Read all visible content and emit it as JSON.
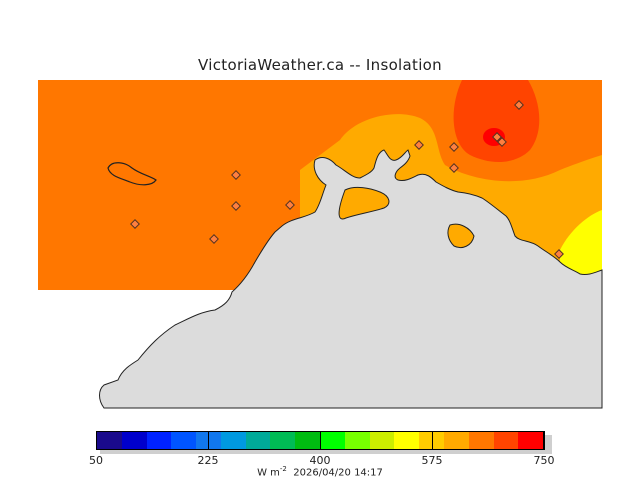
{
  "title": "VictoriaWeather.ca -- Insolation",
  "colorbar": {
    "colors": [
      "#1a0a8c",
      "#0000cc",
      "#0022ff",
      "#0055ff",
      "#1177ee",
      "#0099e0",
      "#00aa99",
      "#00bb55",
      "#00bb11",
      "#00ff00",
      "#77ff00",
      "#ccee00",
      "#ffff00",
      "#ffcc00",
      "#ffaa00",
      "#ff7700",
      "#ff4400",
      "#ff0000"
    ],
    "ticks": [
      {
        "label": "50",
        "value": 50
      },
      {
        "label": "225",
        "value": 225
      },
      {
        "label": "400",
        "value": 400
      },
      {
        "label": "575",
        "value": 575
      },
      {
        "label": "750",
        "value": 750
      }
    ],
    "min": 50,
    "max": 750
  },
  "units": "W m",
  "units_exp": "-2",
  "timestamp": "2026/04/20 14:17",
  "colors": {
    "field_base": "#ff7700",
    "field_mid": "#ffaa00",
    "field_high": "#ff4400",
    "field_max": "#ff0000",
    "field_yellow": "#ffff00",
    "land": "#dcdcdc"
  }
}
